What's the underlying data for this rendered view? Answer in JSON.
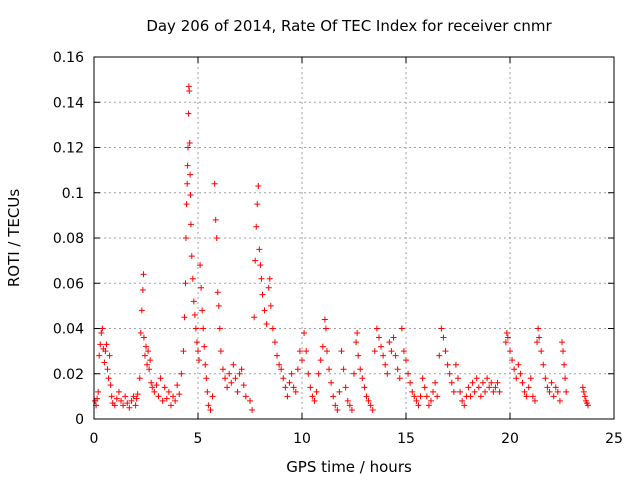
{
  "chart_data": {
    "type": "scatter",
    "title": "Day 206 of 2014, Rate Of TEC Index for receiver cnmr",
    "xlabel": "GPS time / hours",
    "ylabel": "ROTI / TECUs",
    "xlim": [
      0,
      25
    ],
    "ylim": [
      0,
      0.16
    ],
    "xticks": [
      0,
      5,
      10,
      15,
      20,
      25
    ],
    "xtick_labels": [
      "0",
      "5",
      "10",
      "15",
      "20",
      "25"
    ],
    "yticks": [
      0,
      0.02,
      0.04,
      0.06,
      0.08,
      0.1,
      0.12,
      0.14,
      0.16
    ],
    "ytick_labels": [
      "0",
      "0.02",
      "0.04",
      "0.06",
      "0.08",
      "0.1",
      "0.12",
      "0.14",
      "0.16"
    ],
    "grid": true,
    "marker": "+",
    "color": "#ff0000",
    "series": [
      {
        "name": "ROTI",
        "points": [
          [
            0.05,
            0.008
          ],
          [
            0.1,
            0.006
          ],
          [
            0.15,
            0.009
          ],
          [
            0.2,
            0.012
          ],
          [
            0.25,
            0.028
          ],
          [
            0.3,
            0.033
          ],
          [
            0.35,
            0.038
          ],
          [
            0.4,
            0.04
          ],
          [
            0.45,
            0.031
          ],
          [
            0.5,
            0.025
          ],
          [
            0.55,
            0.03
          ],
          [
            0.6,
            0.033
          ],
          [
            0.65,
            0.022
          ],
          [
            0.7,
            0.018
          ],
          [
            0.75,
            0.028
          ],
          [
            0.8,
            0.015
          ],
          [
            0.85,
            0.01
          ],
          [
            0.9,
            0.007
          ],
          [
            1.0,
            0.006
          ],
          [
            1.1,
            0.009
          ],
          [
            1.2,
            0.012
          ],
          [
            1.3,
            0.008
          ],
          [
            1.4,
            0.006
          ],
          [
            1.5,
            0.01
          ],
          [
            1.6,
            0.007
          ],
          [
            1.7,
            0.005
          ],
          [
            1.8,
            0.008
          ],
          [
            1.9,
            0.01
          ],
          [
            2.0,
            0.006
          ],
          [
            2.05,
            0.009
          ],
          [
            2.1,
            0.011
          ],
          [
            2.2,
            0.018
          ],
          [
            2.25,
            0.038
          ],
          [
            2.3,
            0.048
          ],
          [
            2.35,
            0.057
          ],
          [
            2.38,
            0.064
          ],
          [
            2.4,
            0.036
          ],
          [
            2.45,
            0.028
          ],
          [
            2.5,
            0.032
          ],
          [
            2.55,
            0.024
          ],
          [
            2.6,
            0.03
          ],
          [
            2.65,
            0.022
          ],
          [
            2.7,
            0.026
          ],
          [
            2.75,
            0.016
          ],
          [
            2.8,
            0.014
          ],
          [
            2.9,
            0.012
          ],
          [
            3.0,
            0.015
          ],
          [
            3.1,
            0.01
          ],
          [
            3.2,
            0.018
          ],
          [
            3.3,
            0.008
          ],
          [
            3.4,
            0.014
          ],
          [
            3.5,
            0.009
          ],
          [
            3.6,
            0.012
          ],
          [
            3.7,
            0.006
          ],
          [
            3.8,
            0.01
          ],
          [
            3.9,
            0.008
          ],
          [
            4.0,
            0.015
          ],
          [
            4.1,
            0.011
          ],
          [
            4.2,
            0.02
          ],
          [
            4.3,
            0.03
          ],
          [
            4.35,
            0.045
          ],
          [
            4.4,
            0.06
          ],
          [
            4.42,
            0.08
          ],
          [
            4.45,
            0.095
          ],
          [
            4.48,
            0.104
          ],
          [
            4.5,
            0.112
          ],
          [
            4.52,
            0.12
          ],
          [
            4.54,
            0.135
          ],
          [
            4.56,
            0.147
          ],
          [
            4.58,
            0.145
          ],
          [
            4.6,
            0.122
          ],
          [
            4.62,
            0.108
          ],
          [
            4.64,
            0.099
          ],
          [
            4.66,
            0.086
          ],
          [
            4.7,
            0.072
          ],
          [
            4.75,
            0.062
          ],
          [
            4.8,
            0.052
          ],
          [
            4.85,
            0.046
          ],
          [
            4.9,
            0.04
          ],
          [
            4.95,
            0.034
          ],
          [
            5.0,
            0.03
          ],
          [
            5.05,
            0.026
          ],
          [
            5.1,
            0.068
          ],
          [
            5.15,
            0.058
          ],
          [
            5.2,
            0.048
          ],
          [
            5.25,
            0.04
          ],
          [
            5.3,
            0.032
          ],
          [
            5.35,
            0.024
          ],
          [
            5.4,
            0.018
          ],
          [
            5.45,
            0.012
          ],
          [
            5.5,
            0.006
          ],
          [
            5.6,
            0.004
          ],
          [
            5.7,
            0.01
          ],
          [
            5.8,
            0.104
          ],
          [
            5.85,
            0.088
          ],
          [
            5.9,
            0.08
          ],
          [
            5.95,
            0.056
          ],
          [
            6.0,
            0.05
          ],
          [
            6.05,
            0.04
          ],
          [
            6.1,
            0.03
          ],
          [
            6.2,
            0.022
          ],
          [
            6.3,
            0.018
          ],
          [
            6.4,
            0.014
          ],
          [
            6.5,
            0.02
          ],
          [
            6.6,
            0.016
          ],
          [
            6.7,
            0.024
          ],
          [
            6.8,
            0.018
          ],
          [
            6.9,
            0.012
          ],
          [
            7.0,
            0.02
          ],
          [
            7.1,
            0.022
          ],
          [
            7.2,
            0.015
          ],
          [
            7.3,
            0.01
          ],
          [
            7.5,
            0.008
          ],
          [
            7.6,
            0.004
          ],
          [
            7.7,
            0.045
          ],
          [
            7.75,
            0.07
          ],
          [
            7.8,
            0.085
          ],
          [
            7.85,
            0.095
          ],
          [
            7.9,
            0.103
          ],
          [
            7.95,
            0.075
          ],
          [
            8.0,
            0.068
          ],
          [
            8.05,
            0.062
          ],
          [
            8.1,
            0.055
          ],
          [
            8.2,
            0.048
          ],
          [
            8.3,
            0.042
          ],
          [
            8.4,
            0.058
          ],
          [
            8.45,
            0.062
          ],
          [
            8.5,
            0.05
          ],
          [
            8.6,
            0.04
          ],
          [
            8.7,
            0.034
          ],
          [
            8.8,
            0.028
          ],
          [
            8.9,
            0.024
          ],
          [
            9.0,
            0.022
          ],
          [
            9.1,
            0.018
          ],
          [
            9.2,
            0.014
          ],
          [
            9.3,
            0.01
          ],
          [
            9.4,
            0.016
          ],
          [
            9.5,
            0.02
          ],
          [
            9.6,
            0.014
          ],
          [
            9.7,
            0.012
          ],
          [
            9.8,
            0.022
          ],
          [
            9.9,
            0.03
          ],
          [
            10.0,
            0.026
          ],
          [
            10.1,
            0.038
          ],
          [
            10.2,
            0.03
          ],
          [
            10.3,
            0.02
          ],
          [
            10.4,
            0.014
          ],
          [
            10.5,
            0.01
          ],
          [
            10.6,
            0.008
          ],
          [
            10.7,
            0.012
          ],
          [
            10.8,
            0.02
          ],
          [
            10.9,
            0.026
          ],
          [
            11.0,
            0.032
          ],
          [
            11.1,
            0.044
          ],
          [
            11.15,
            0.04
          ],
          [
            11.2,
            0.03
          ],
          [
            11.3,
            0.022
          ],
          [
            11.4,
            0.016
          ],
          [
            11.5,
            0.01
          ],
          [
            11.6,
            0.006
          ],
          [
            11.7,
            0.004
          ],
          [
            11.8,
            0.012
          ],
          [
            11.9,
            0.03
          ],
          [
            12.0,
            0.022
          ],
          [
            12.1,
            0.014
          ],
          [
            12.2,
            0.008
          ],
          [
            12.3,
            0.006
          ],
          [
            12.4,
            0.004
          ],
          [
            12.5,
            0.02
          ],
          [
            12.6,
            0.034
          ],
          [
            12.65,
            0.038
          ],
          [
            12.7,
            0.028
          ],
          [
            12.8,
            0.022
          ],
          [
            12.9,
            0.018
          ],
          [
            13.0,
            0.014
          ],
          [
            13.1,
            0.01
          ],
          [
            13.2,
            0.008
          ],
          [
            13.3,
            0.006
          ],
          [
            13.4,
            0.004
          ],
          [
            13.5,
            0.03
          ],
          [
            13.6,
            0.04
          ],
          [
            13.7,
            0.036
          ],
          [
            13.8,
            0.032
          ],
          [
            13.9,
            0.028
          ],
          [
            14.0,
            0.024
          ],
          [
            14.1,
            0.02
          ],
          [
            14.2,
            0.034
          ],
          [
            14.3,
            0.03
          ],
          [
            14.4,
            0.036
          ],
          [
            14.5,
            0.028
          ],
          [
            14.6,
            0.022
          ],
          [
            14.7,
            0.018
          ],
          [
            14.8,
            0.04
          ],
          [
            14.9,
            0.03
          ],
          [
            15.0,
            0.026
          ],
          [
            15.1,
            0.02
          ],
          [
            15.2,
            0.016
          ],
          [
            15.3,
            0.012
          ],
          [
            15.4,
            0.01
          ],
          [
            15.5,
            0.008
          ],
          [
            15.6,
            0.006
          ],
          [
            15.7,
            0.01
          ],
          [
            15.8,
            0.018
          ],
          [
            15.9,
            0.014
          ],
          [
            16.0,
            0.01
          ],
          [
            16.1,
            0.006
          ],
          [
            16.2,
            0.008
          ],
          [
            16.3,
            0.012
          ],
          [
            16.4,
            0.016
          ],
          [
            16.5,
            0.01
          ],
          [
            16.6,
            0.028
          ],
          [
            16.7,
            0.04
          ],
          [
            16.8,
            0.036
          ],
          [
            16.9,
            0.03
          ],
          [
            17.0,
            0.024
          ],
          [
            17.1,
            0.02
          ],
          [
            17.2,
            0.016
          ],
          [
            17.3,
            0.012
          ],
          [
            17.4,
            0.024
          ],
          [
            17.5,
            0.018
          ],
          [
            17.6,
            0.012
          ],
          [
            17.7,
            0.008
          ],
          [
            17.8,
            0.006
          ],
          [
            17.9,
            0.01
          ],
          [
            18.0,
            0.014
          ],
          [
            18.1,
            0.01
          ],
          [
            18.2,
            0.016
          ],
          [
            18.3,
            0.012
          ],
          [
            18.4,
            0.018
          ],
          [
            18.5,
            0.014
          ],
          [
            18.6,
            0.01
          ],
          [
            18.7,
            0.016
          ],
          [
            18.8,
            0.012
          ],
          [
            18.9,
            0.018
          ],
          [
            19.0,
            0.014
          ],
          [
            19.1,
            0.016
          ],
          [
            19.2,
            0.012
          ],
          [
            19.3,
            0.014
          ],
          [
            19.4,
            0.016
          ],
          [
            19.5,
            0.012
          ],
          [
            19.8,
            0.034
          ],
          [
            19.85,
            0.038
          ],
          [
            19.9,
            0.036
          ],
          [
            20.0,
            0.03
          ],
          [
            20.1,
            0.026
          ],
          [
            20.2,
            0.022
          ],
          [
            20.3,
            0.018
          ],
          [
            20.4,
            0.024
          ],
          [
            20.5,
            0.02
          ],
          [
            20.6,
            0.016
          ],
          [
            20.7,
            0.012
          ],
          [
            20.8,
            0.01
          ],
          [
            20.9,
            0.014
          ],
          [
            21.0,
            0.018
          ],
          [
            21.1,
            0.01
          ],
          [
            21.2,
            0.008
          ],
          [
            21.3,
            0.034
          ],
          [
            21.35,
            0.04
          ],
          [
            21.4,
            0.036
          ],
          [
            21.5,
            0.03
          ],
          [
            21.6,
            0.024
          ],
          [
            21.7,
            0.018
          ],
          [
            21.8,
            0.014
          ],
          [
            21.9,
            0.012
          ],
          [
            22.0,
            0.016
          ],
          [
            22.1,
            0.01
          ],
          [
            22.2,
            0.014
          ],
          [
            22.3,
            0.012
          ],
          [
            22.4,
            0.008
          ],
          [
            22.5,
            0.034
          ],
          [
            22.55,
            0.03
          ],
          [
            22.6,
            0.024
          ],
          [
            22.65,
            0.018
          ],
          [
            22.7,
            0.012
          ],
          [
            23.5,
            0.014
          ],
          [
            23.55,
            0.012
          ],
          [
            23.6,
            0.01
          ],
          [
            23.65,
            0.008
          ],
          [
            23.7,
            0.007
          ],
          [
            23.75,
            0.006
          ]
        ]
      }
    ]
  }
}
